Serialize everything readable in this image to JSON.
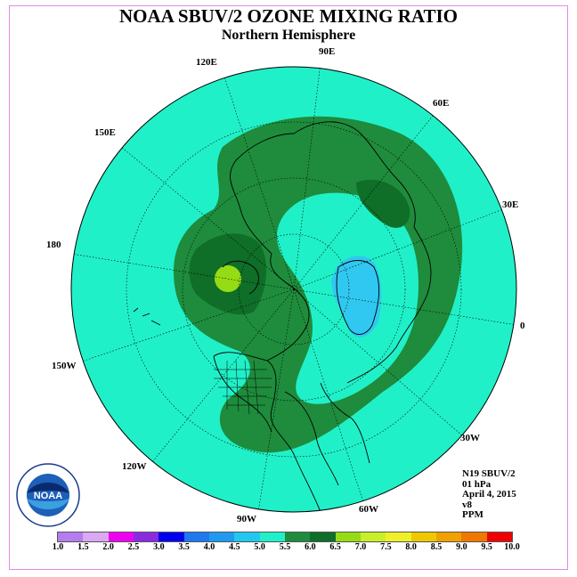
{
  "title": "NOAA SBUV/2 OZONE MIXING RATIO",
  "subtitle": "Northern Hemisphere",
  "longitudes": {
    "e90": "90E",
    "e120": "120E",
    "e60": "60E",
    "e150": "150E",
    "e30": "30E",
    "d180": "180",
    "d0": "0",
    "w150": "150W",
    "w30": "30W",
    "w120": "120W",
    "w60": "60W",
    "w90": "90W"
  },
  "info": {
    "instrument": "N19 SBUV/2",
    "level": "01 hPa",
    "date": "April 4, 2015",
    "version": "v8",
    "units": "PPM"
  },
  "colorbar": {
    "ticks": [
      "1.0",
      "1.5",
      "2.0",
      "2.5",
      "3.0",
      "3.5",
      "4.0",
      "4.5",
      "5.0",
      "5.5",
      "6.0",
      "6.5",
      "7.0",
      "7.5",
      "8.0",
      "8.5",
      "9.0",
      "9.5",
      "10.0"
    ],
    "colors": [
      "#b57cf0",
      "#dba8f2",
      "#f000f0",
      "#8a2be2",
      "#0000f0",
      "#1e78f0",
      "#1e9bf0",
      "#20c8f0",
      "#20f0c8",
      "#1e8c3c",
      "#0f6e28",
      "#96dc14",
      "#c8f028",
      "#f0f028",
      "#f0c800",
      "#f0a000",
      "#f07800",
      "#f00000",
      "#8b5a3c"
    ]
  },
  "colors": {
    "bg": "#20f0c8",
    "band": "#1e8c3c",
    "dark": "#0f6e28",
    "light": "#96dc14",
    "blue": "#30c8f0"
  },
  "logo_text": "NOAA"
}
